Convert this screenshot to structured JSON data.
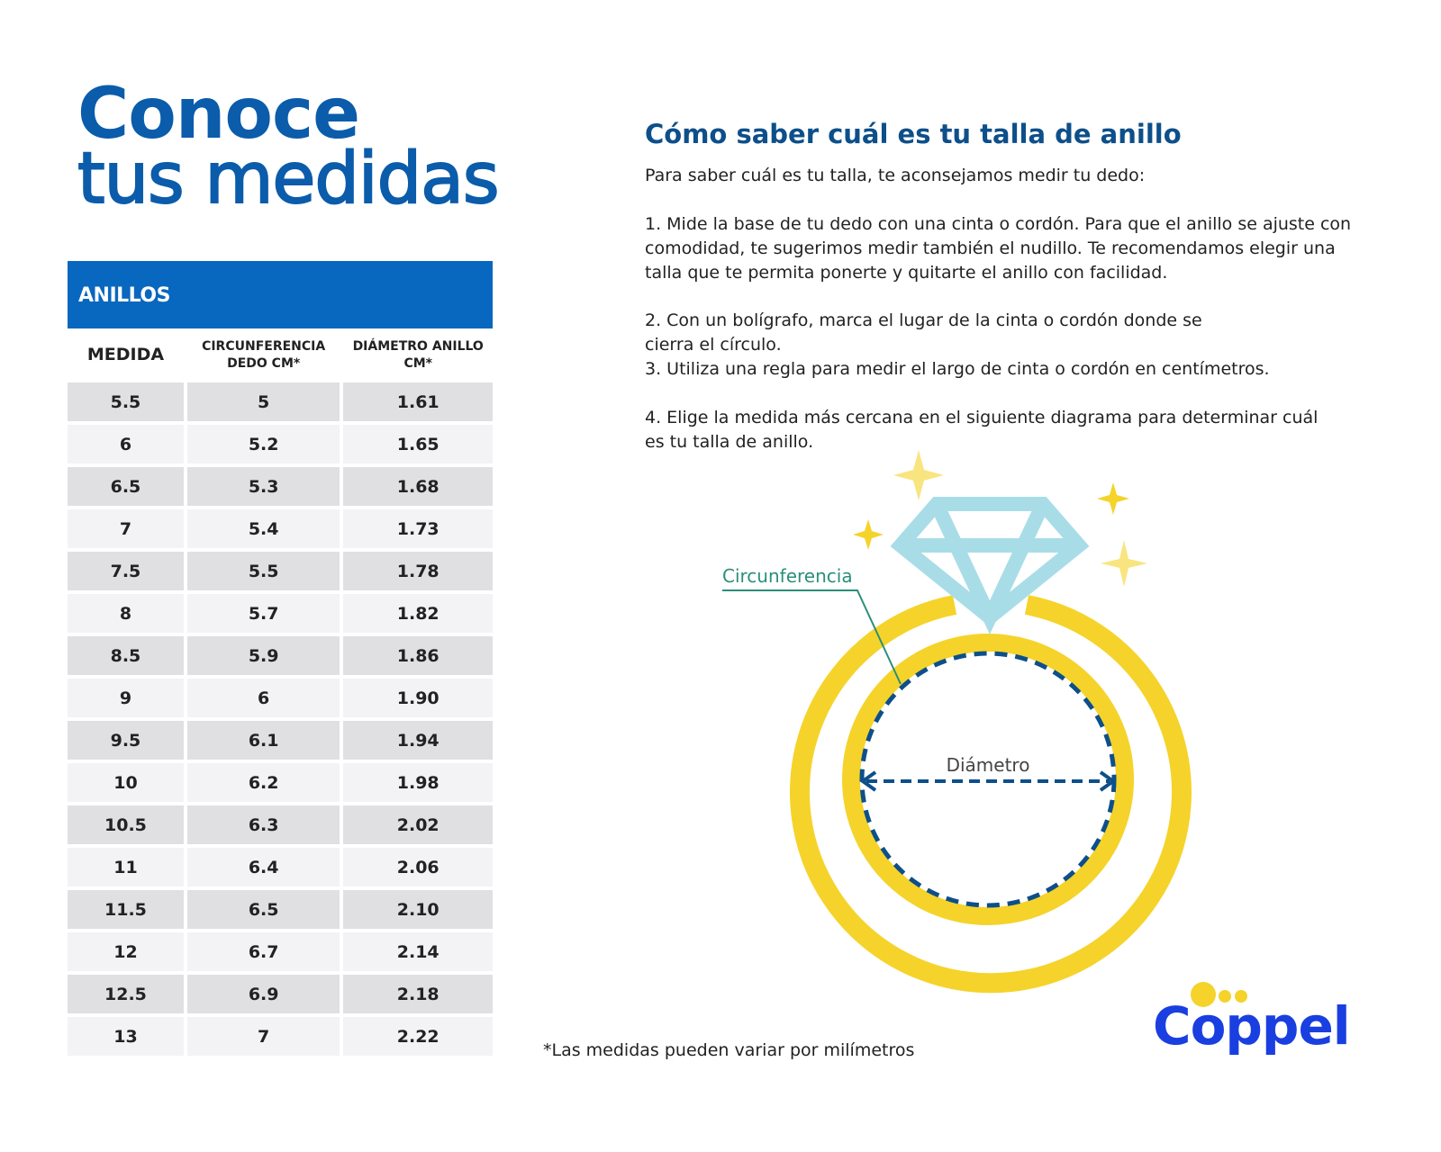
{
  "title": {
    "line1": "Conoce",
    "line2": "tus medidas"
  },
  "table": {
    "heading": "ANILLOS",
    "columns": [
      "MEDIDA",
      "CIRCUNFERENCIA DEDO CM*",
      "DIÁMETRO ANILLO CM*"
    ],
    "rows": [
      [
        "5.5",
        "5",
        "1.61"
      ],
      [
        "6",
        "5.2",
        "1.65"
      ],
      [
        "6.5",
        "5.3",
        "1.68"
      ],
      [
        "7",
        "5.4",
        "1.73"
      ],
      [
        "7.5",
        "5.5",
        "1.78"
      ],
      [
        "8",
        "5.7",
        "1.82"
      ],
      [
        "8.5",
        "5.9",
        "1.86"
      ],
      [
        "9",
        "6",
        "1.90"
      ],
      [
        "9.5",
        "6.1",
        "1.94"
      ],
      [
        "10",
        "6.2",
        "1.98"
      ],
      [
        "10.5",
        "6.3",
        "2.02"
      ],
      [
        "11",
        "6.4",
        "2.06"
      ],
      [
        "11.5",
        "6.5",
        "2.10"
      ],
      [
        "12",
        "6.7",
        "2.14"
      ],
      [
        "12.5",
        "6.9",
        "2.18"
      ],
      [
        "13",
        "7",
        "2.22"
      ]
    ]
  },
  "instructions": {
    "heading": "Cómo saber cuál es tu talla de anillo",
    "intro": "Para saber cuál es tu talla, te aconsejamos medir tu dedo:",
    "step1": "1. Mide la base de tu dedo con una cinta o cordón. Para que el anillo se ajuste con comodidad, te sugerimos medir también el nudillo. Te recomendamos elegir una talla que te permita ponerte y quitarte el anillo con facilidad.",
    "step2": "2. Con un bolígrafo, marca el lugar de la cinta o cordón donde se cierra el círculo.",
    "step3": "3. Utiliza una regla para medir el largo de cinta o cordón en centímetros.",
    "step4": "4. Elige la medida más cercana en el siguiente diagrama para determinar cuál es tu talla de anillo."
  },
  "diagram": {
    "circumference_label": "Circunferencia",
    "diameter_label": "Diámetro"
  },
  "note": "*Las medidas pueden variar por milímetros",
  "logo": "Coppel",
  "colors": {
    "brand_blue": "#0867bf",
    "ring_yellow": "#f5d32a",
    "diamond": "#a8dde8",
    "dash_blue": "#0d4f8a",
    "label_green": "#2a8f7a"
  }
}
